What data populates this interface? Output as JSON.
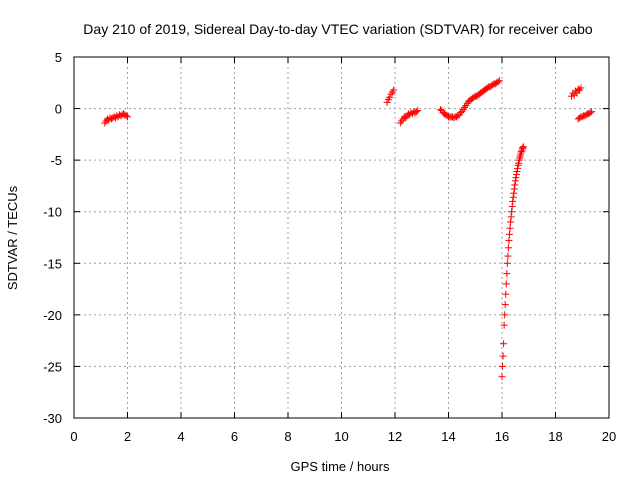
{
  "chart_data": {
    "type": "scatter",
    "title": "Day 210 of 2019, Sidereal Day-to-day VTEC variation (SDTVAR) for receiver cabo",
    "xlabel": "GPS time / hours",
    "ylabel": "SDTVAR / TECUs",
    "xlim": [
      0,
      20
    ],
    "ylim": [
      -30,
      5
    ],
    "xticks": [
      0,
      2,
      4,
      6,
      8,
      10,
      12,
      14,
      16,
      18,
      20
    ],
    "yticks": [
      5,
      0,
      -5,
      -10,
      -15,
      -20,
      -25,
      -30
    ],
    "grid": true,
    "marker": "+",
    "series_color": "#ff0000",
    "segments": [
      {
        "x": [
          1.15,
          1.2,
          1.25,
          1.3,
          1.35,
          1.4,
          1.45,
          1.5,
          1.55,
          1.6,
          1.65,
          1.7,
          1.75,
          1.8,
          1.85,
          1.9,
          1.95,
          2.0
        ],
        "y": [
          -1.4,
          -1.2,
          -1.0,
          -1.1,
          -0.9,
          -1.0,
          -0.9,
          -0.8,
          -0.9,
          -0.7,
          -0.8,
          -0.6,
          -0.7,
          -0.6,
          -0.5,
          -0.6,
          -0.7,
          -0.8
        ]
      },
      {
        "x": [
          11.7,
          11.75,
          11.8,
          11.85,
          11.9,
          11.95
        ],
        "y": [
          0.6,
          0.9,
          1.1,
          1.4,
          1.6,
          1.8
        ]
      },
      {
        "x": [
          12.2,
          12.25,
          12.3,
          12.35,
          12.4,
          12.45,
          12.5,
          12.55,
          12.6,
          12.65,
          12.7,
          12.75,
          12.8,
          12.85
        ],
        "y": [
          -1.4,
          -1.2,
          -1.0,
          -0.8,
          -0.9,
          -0.7,
          -0.5,
          -0.6,
          -0.4,
          -0.5,
          -0.3,
          -0.4,
          -0.3,
          -0.2
        ]
      },
      {
        "x": [
          13.7,
          13.75,
          13.8,
          13.85,
          13.9,
          13.95,
          14.0,
          14.05,
          14.1,
          14.15,
          14.2,
          14.25,
          14.3,
          14.35,
          14.4,
          14.45,
          14.5,
          14.55,
          14.6,
          14.65,
          14.7,
          14.75,
          14.8,
          14.85,
          14.9,
          14.95,
          15.0,
          15.05,
          15.1,
          15.15,
          15.2,
          15.25,
          15.3,
          15.35,
          15.4,
          15.45,
          15.5,
          15.55,
          15.6,
          15.65,
          15.7,
          15.75,
          15.8,
          15.85,
          15.9
        ],
        "y": [
          -0.1,
          -0.2,
          -0.4,
          -0.5,
          -0.6,
          -0.7,
          -0.8,
          -0.8,
          -0.8,
          -0.8,
          -0.9,
          -0.8,
          -0.8,
          -0.7,
          -0.6,
          -0.4,
          -0.3,
          -0.1,
          0.1,
          0.3,
          0.5,
          0.7,
          0.8,
          0.9,
          1.0,
          1.1,
          1.2,
          1.2,
          1.3,
          1.4,
          1.5,
          1.6,
          1.7,
          1.8,
          1.9,
          2.0,
          2.1,
          2.1,
          2.2,
          2.3,
          2.4,
          2.4,
          2.5,
          2.6,
          2.7
        ]
      },
      {
        "x": [
          16.0,
          16.02,
          16.04,
          16.06,
          16.08,
          16.1,
          16.12,
          16.14,
          16.16,
          16.18,
          16.2,
          16.22,
          16.24,
          16.26,
          16.28,
          16.3,
          16.32,
          16.34,
          16.36,
          16.38,
          16.4,
          16.42,
          16.44,
          16.46,
          16.48,
          16.5,
          16.52,
          16.54,
          16.56,
          16.58,
          16.6,
          16.62,
          16.64,
          16.66,
          16.68,
          16.7,
          16.72,
          16.74,
          16.76,
          16.78,
          16.8
        ],
        "y": [
          -26.0,
          -25.0,
          -24.0,
          -22.8,
          -21.0,
          -20.0,
          -19.0,
          -18.0,
          -17.0,
          -16.0,
          -15.0,
          -14.3,
          -13.5,
          -12.8,
          -12.2,
          -11.6,
          -11.0,
          -10.5,
          -10.0,
          -9.5,
          -9.0,
          -8.6,
          -8.2,
          -7.8,
          -7.4,
          -7.0,
          -6.7,
          -6.4,
          -6.1,
          -5.8,
          -5.5,
          -5.3,
          -5.0,
          -4.8,
          -4.6,
          -4.4,
          -4.2,
          -4.1,
          -3.9,
          -3.8,
          -3.7
        ]
      },
      {
        "x": [
          18.6,
          18.65,
          18.7,
          18.75,
          18.8,
          18.85,
          18.9,
          18.95
        ],
        "y": [
          1.2,
          1.5,
          1.3,
          1.7,
          1.5,
          1.9,
          1.8,
          2.0
        ]
      },
      {
        "x": [
          18.85,
          18.9,
          18.95,
          19.0,
          19.05,
          19.1,
          19.15,
          19.2,
          19.25,
          19.3,
          19.35
        ],
        "y": [
          -1.0,
          -0.9,
          -0.8,
          -0.8,
          -0.7,
          -0.7,
          -0.6,
          -0.5,
          -0.5,
          -0.4,
          -0.3
        ]
      }
    ]
  }
}
